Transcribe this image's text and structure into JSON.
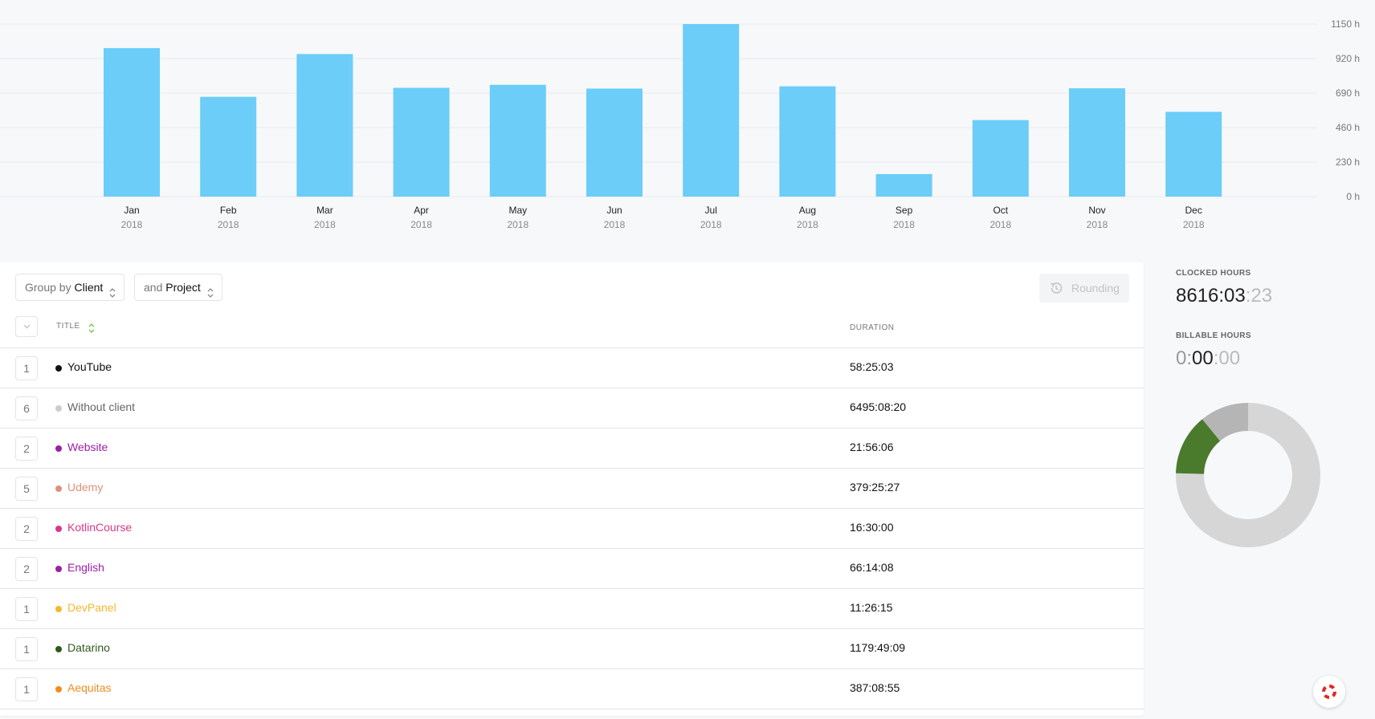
{
  "chart_data": {
    "type": "bar",
    "categories": [
      "Jan",
      "Feb",
      "Mar",
      "Apr",
      "May",
      "Jun",
      "Jul",
      "Aug",
      "Sep",
      "Oct",
      "Nov",
      "Dec"
    ],
    "sublabels": [
      "2018",
      "2018",
      "2018",
      "2018",
      "2018",
      "2018",
      "2018",
      "2018",
      "2018",
      "2018",
      "2018",
      "2018"
    ],
    "values": [
      990,
      665,
      950,
      725,
      745,
      720,
      1150,
      735,
      150,
      510,
      722,
      565
    ],
    "ylim": [
      0,
      1150
    ],
    "yticks": [
      0,
      230,
      460,
      690,
      920,
      1150
    ],
    "ytick_labels": [
      "0 h",
      "230 h",
      "460 h",
      "690 h",
      "920 h",
      "1150 h"
    ],
    "bar_color": "#6bcdf8",
    "grid": true
  },
  "toolbar": {
    "group_by_prefix": "Group by",
    "group_by_value": "Client",
    "and_prefix": "and",
    "and_value": "Project",
    "rounding_label": "Rounding"
  },
  "table": {
    "title_header": "TITLE",
    "duration_header": "DURATION",
    "rows": [
      {
        "count": "1",
        "title": "YouTube",
        "duration": "58:25:03",
        "color": "#111111"
      },
      {
        "count": "6",
        "title": "Without client",
        "duration": "6495:08:20",
        "color": "#cccccc",
        "text_color": "#666666"
      },
      {
        "count": "2",
        "title": "Website",
        "duration": "21:56:06",
        "color": "#9c1fa6"
      },
      {
        "count": "5",
        "title": "Udemy",
        "duration": "379:25:27",
        "color": "#e0907c"
      },
      {
        "count": "2",
        "title": "KotlinCourse",
        "duration": "16:30:00",
        "color": "#d9378c"
      },
      {
        "count": "2",
        "title": "English",
        "duration": "66:14:08",
        "color": "#9c1fa6"
      },
      {
        "count": "1",
        "title": "DevPanel",
        "duration": "11:26:15",
        "color": "#f2b92c"
      },
      {
        "count": "1",
        "title": "Datarino",
        "duration": "1179:49:09",
        "color": "#2e5a1c"
      },
      {
        "count": "1",
        "title": "Aequitas",
        "duration": "387:08:55",
        "color": "#f28c1e"
      }
    ]
  },
  "stats": {
    "clocked_label": "CLOCKED HOURS",
    "clocked_main": "8616:03",
    "clocked_seconds": ":23",
    "billable_label": "BILLABLE HOURS",
    "billable_hours": "0:",
    "billable_minutes": "00",
    "billable_seconds": ":00"
  },
  "donut": {
    "segments": [
      {
        "fraction": 0.7539,
        "color": "#d6d6d6"
      },
      {
        "fraction": 0.1369,
        "color": "#4a7a2c"
      },
      {
        "fraction": 0.1092,
        "color": "#b5b5b5"
      }
    ]
  },
  "icons": {
    "help": "help-lifebuoy-icon",
    "rounding": "history-icon",
    "sort": "sort-arrows-icon",
    "chevron": "chevron-down-icon"
  }
}
